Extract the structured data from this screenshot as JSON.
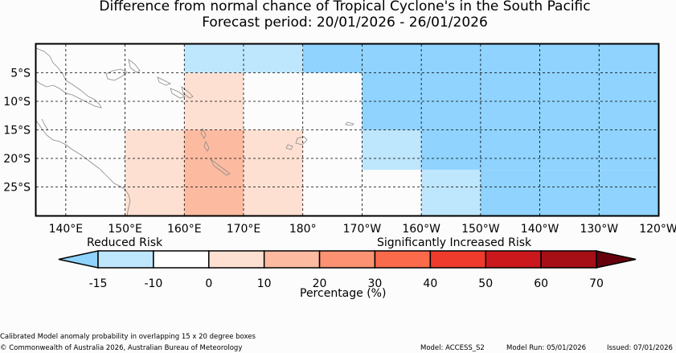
{
  "title": "Difference from normal chance of Tropical Cyclone's in the South Pacific",
  "subtitle": "Forecast period: 20/01/2026 - 26/01/2026",
  "map": {
    "lon_range_deg_east": [
      135,
      240
    ],
    "lat_range": [
      0,
      -30
    ],
    "lon_ticks": [
      "140°E",
      "150°E",
      "160°E",
      "170°E",
      "180°",
      "170°W",
      "160°W",
      "150°W",
      "140°W",
      "130°W",
      "120°W"
    ],
    "lat_ticks": [
      "5°S",
      "10°S",
      "15°S",
      "20°S",
      "25°S"
    ],
    "cells": [
      {
        "lon": [
          160,
          170
        ],
        "lat": [
          0,
          -5
        ],
        "value": -12
      },
      {
        "lon": [
          170,
          180
        ],
        "lat": [
          0,
          -5
        ],
        "value": -12
      },
      {
        "lon": [
          180,
          240
        ],
        "lat": [
          0,
          -5
        ],
        "value": -20
      },
      {
        "lon": [
          160,
          170
        ],
        "lat": [
          -5,
          -15
        ],
        "value": 5
      },
      {
        "lon": [
          190,
          240
        ],
        "lat": [
          -5,
          -15
        ],
        "value": -20
      },
      {
        "lon": [
          150,
          160
        ],
        "lat": [
          -15,
          -30
        ],
        "value": 5
      },
      {
        "lon": [
          160,
          170
        ],
        "lat": [
          -15,
          -30
        ],
        "value": 15
      },
      {
        "lon": [
          170,
          180
        ],
        "lat": [
          -15,
          -30
        ],
        "value": 5
      },
      {
        "lon": [
          190,
          200
        ],
        "lat": [
          -15,
          -22
        ],
        "value": -12
      },
      {
        "lon": [
          200,
          240
        ],
        "lat": [
          -15,
          -22
        ],
        "value": -20
      },
      {
        "lon": [
          200,
          210
        ],
        "lat": [
          -22,
          -30
        ],
        "value": -12
      },
      {
        "lon": [
          210,
          240
        ],
        "lat": [
          -22,
          -30
        ],
        "value": -20
      }
    ]
  },
  "legend": {
    "left_label": "Reduced Risk",
    "right_label": "Significantly Increased Risk",
    "axis_label": "Percentage (%)",
    "ticks": [
      "-15",
      "-10",
      "0",
      "10",
      "20",
      "30",
      "40",
      "50",
      "60",
      "70"
    ],
    "bins": [
      {
        "from": -15,
        "to": -10,
        "color": "#bee6fd"
      },
      {
        "from": -10,
        "to": 0,
        "color": "#ffffff"
      },
      {
        "from": 0,
        "to": 10,
        "color": "#fee0d2"
      },
      {
        "from": 10,
        "to": 20,
        "color": "#fcbba1"
      },
      {
        "from": 20,
        "to": 30,
        "color": "#fc9272"
      },
      {
        "from": 30,
        "to": 40,
        "color": "#fb6a4a"
      },
      {
        "from": 40,
        "to": 50,
        "color": "#ef3b2c"
      },
      {
        "from": 50,
        "to": 60,
        "color": "#cb181d"
      },
      {
        "from": 60,
        "to": 70,
        "color": "#a50f15"
      }
    ],
    "under_color": "#8fd3fe",
    "over_color": "#67000d"
  },
  "footer": {
    "note": "Calibrated Model anomaly probability in overlapping 15 x 20 degree boxes",
    "copyright": "© Commonwealth of Australia 2026, Australian Bureau of Meteorology",
    "model": "Model: ACCESS_S2",
    "model_run": "Model Run: 05/01/2026",
    "issued": "Issued: 07/01/2026"
  }
}
